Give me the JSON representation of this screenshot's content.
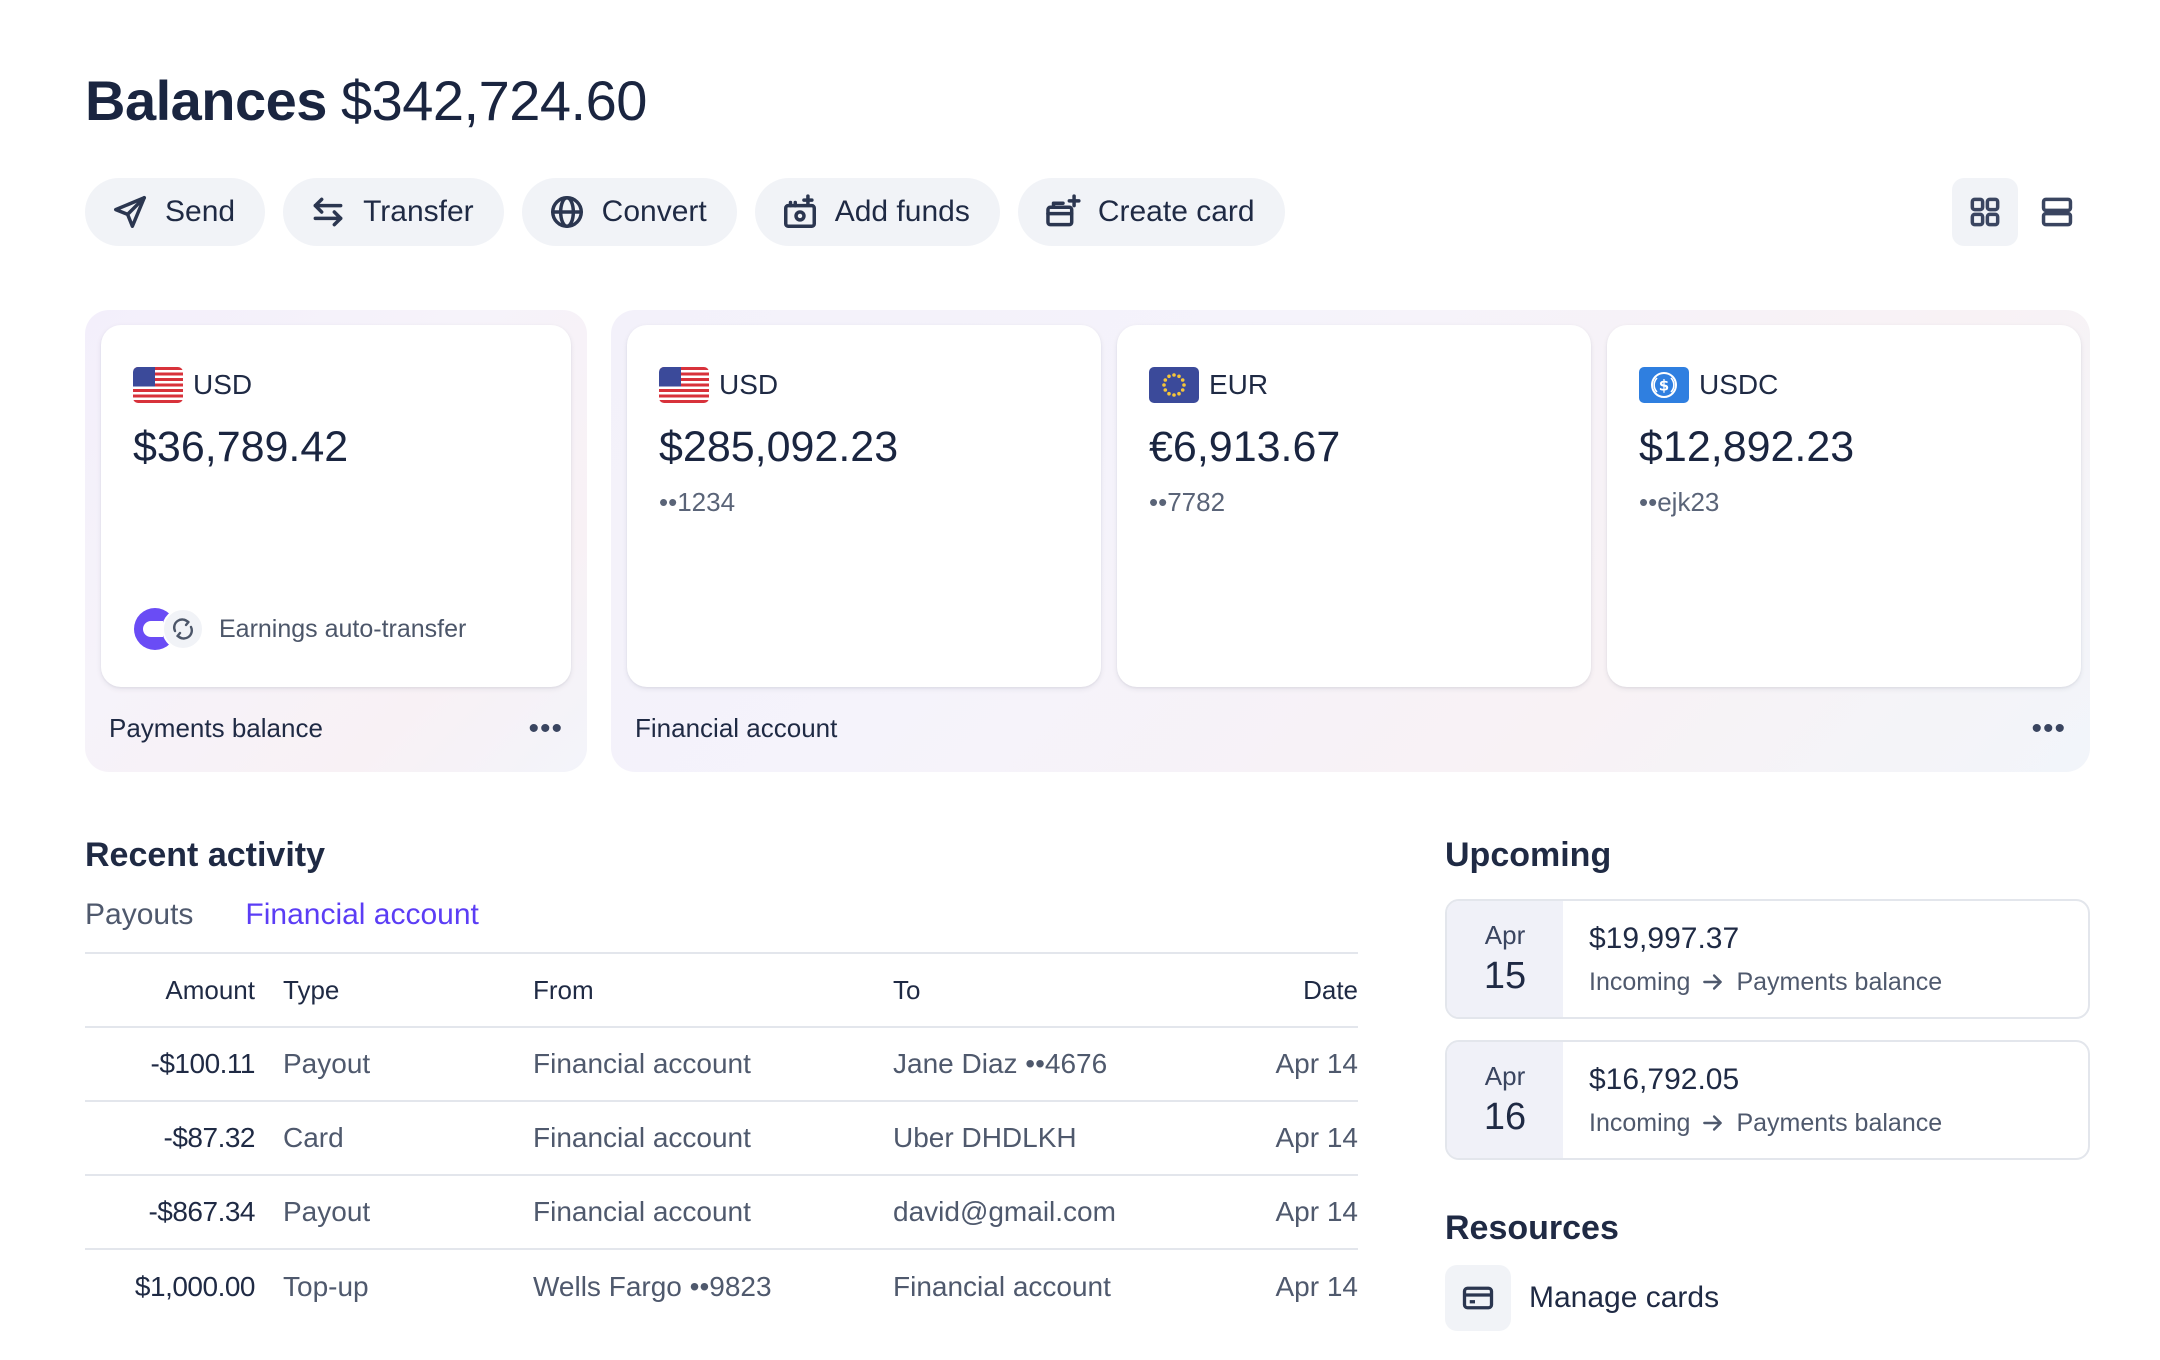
{
  "header": {
    "title": "Balances",
    "total": "$342,724.60"
  },
  "actions": [
    {
      "label": "Send",
      "icon": "send-icon"
    },
    {
      "label": "Transfer",
      "icon": "transfer-icon"
    },
    {
      "label": "Convert",
      "icon": "globe-icon"
    },
    {
      "label": "Add funds",
      "icon": "add-funds-icon"
    },
    {
      "label": "Create card",
      "icon": "create-card-icon"
    }
  ],
  "view_toggle": {
    "selected": "grid"
  },
  "payments_group": {
    "label": "Payments balance",
    "more": "•••",
    "card": {
      "currency": "USD",
      "amount": "$36,789.42",
      "note": "Earnings auto-transfer"
    }
  },
  "financial_group": {
    "label": "Financial account",
    "more": "•••",
    "cards": [
      {
        "currency": "USD",
        "amount": "$285,092.23",
        "account": "••1234"
      },
      {
        "currency": "EUR",
        "amount": "€6,913.67",
        "account": "••7782"
      },
      {
        "currency": "USDC",
        "amount": "$12,892.23",
        "account": "••ejk23"
      }
    ]
  },
  "recent_activity": {
    "title": "Recent activity",
    "tabs": [
      {
        "label": "Payouts",
        "active": false
      },
      {
        "label": "Financial account",
        "active": true
      }
    ],
    "columns": {
      "amount": "Amount",
      "type": "Type",
      "from": "From",
      "to": "To",
      "date": "Date"
    },
    "rows": [
      {
        "amount": "-$100.11",
        "type": "Payout",
        "from": "Financial account",
        "to": "Jane Diaz ••4676",
        "date": "Apr 14"
      },
      {
        "amount": "-$87.32",
        "type": "Card",
        "from": "Financial account",
        "to": "Uber DHDLKH",
        "date": "Apr 14"
      },
      {
        "amount": "-$867.34",
        "type": "Payout",
        "from": "Financial account",
        "to": "david@gmail.com",
        "date": "Apr 14"
      },
      {
        "amount": "$1,000.00",
        "type": "Top-up",
        "from": "Wells Fargo ••9823",
        "to": "Financial account",
        "date": "Apr 14"
      }
    ]
  },
  "upcoming": {
    "title": "Upcoming",
    "items": [
      {
        "month": "Apr",
        "day": "15",
        "amount": "$19,997.37",
        "direction": "Incoming",
        "target": "Payments balance"
      },
      {
        "month": "Apr",
        "day": "16",
        "amount": "$16,792.05",
        "direction": "Incoming",
        "target": "Payments balance"
      }
    ]
  },
  "resources": {
    "title": "Resources",
    "items": [
      {
        "label": "Manage cards",
        "icon": "card-icon"
      }
    ]
  }
}
